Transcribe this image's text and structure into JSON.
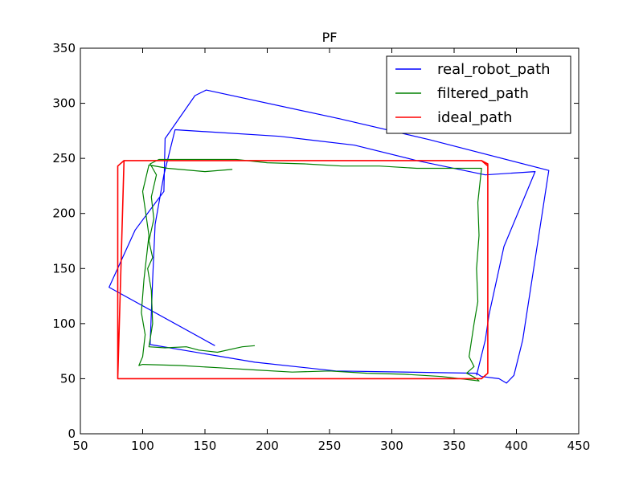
{
  "chart_data": {
    "type": "line",
    "title": "PF",
    "xlabel": "",
    "ylabel": "",
    "xlim": [
      50,
      450
    ],
    "ylim": [
      0,
      350
    ],
    "xticks": [
      50,
      100,
      150,
      200,
      250,
      300,
      350,
      400,
      450
    ],
    "yticks": [
      0,
      50,
      100,
      150,
      200,
      250,
      300,
      350
    ],
    "grid": false,
    "legend_position": "top-right",
    "series": [
      {
        "name": "real_robot_path",
        "color": "#0000ff",
        "x": [
          158,
          73,
          94,
          117,
          118,
          142,
          151,
          258,
          330,
          426,
          405,
          398,
          392,
          386,
          372,
          368,
          255,
          190,
          106,
          108,
          110,
          117,
          126,
          210,
          270,
          320,
          375,
          415,
          390,
          378,
          375,
          368
        ],
        "y": [
          80,
          133,
          185,
          220,
          268,
          307,
          312,
          286,
          267,
          239,
          85,
          53,
          46,
          50,
          52,
          55,
          57,
          65,
          81,
          140,
          190,
          235,
          276,
          270,
          262,
          248,
          235,
          238,
          170,
          108,
          85,
          53
        ]
      },
      {
        "name": "filtered_path",
        "color": "#008000",
        "x": [
          190,
          180,
          160,
          145,
          135,
          118,
          105,
          108,
          107,
          104,
          108,
          105,
          109,
          107,
          111,
          106,
          113,
          120,
          140,
          160,
          175,
          200,
          230,
          260,
          290,
          320,
          350,
          372,
          369,
          370,
          368,
          369,
          366,
          362,
          366,
          360,
          365,
          368,
          370,
          340,
          310,
          280,
          250,
          220,
          190,
          160,
          130,
          100,
          97,
          100,
          102,
          99,
          101,
          105,
          100,
          105,
          120,
          150,
          172
        ],
        "y": [
          80,
          79,
          74,
          76,
          79,
          78,
          79,
          100,
          130,
          150,
          160,
          175,
          195,
          215,
          235,
          245,
          249,
          249,
          249,
          249,
          249,
          246,
          245,
          243,
          243,
          241,
          241,
          241,
          210,
          180,
          150,
          120,
          100,
          70,
          61,
          55,
          52,
          50,
          48,
          52,
          54,
          55,
          57,
          56,
          58,
          60,
          62,
          63,
          62,
          70,
          90,
          110,
          140,
          180,
          220,
          244,
          241,
          238,
          240
        ]
      },
      {
        "name": "ideal_path",
        "color": "#ff0000",
        "x": [
          188,
          372,
          377,
          377,
          372,
          85,
          80,
          80,
          85,
          372,
          377,
          377,
          372,
          80
        ],
        "y": [
          50,
          50,
          55,
          245,
          248,
          248,
          243,
          50,
          248,
          248,
          243,
          55,
          50,
          50
        ]
      }
    ]
  }
}
